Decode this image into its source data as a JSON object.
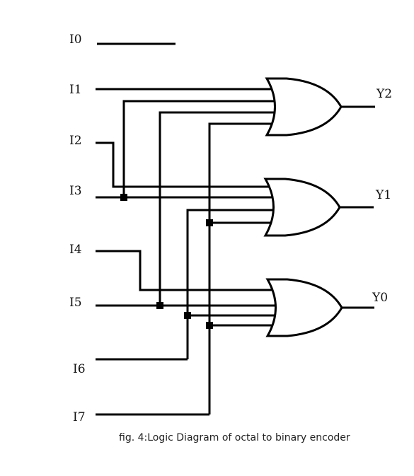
{
  "inputs": [
    "I0",
    "I1",
    "I2",
    "I3",
    "I4",
    "I5",
    "I6",
    "I7"
  ],
  "outputs": [
    "Y2",
    "Y1",
    "Y0"
  ],
  "caption": "fig. 4:Logic Diagram of octal to binary encoder"
}
